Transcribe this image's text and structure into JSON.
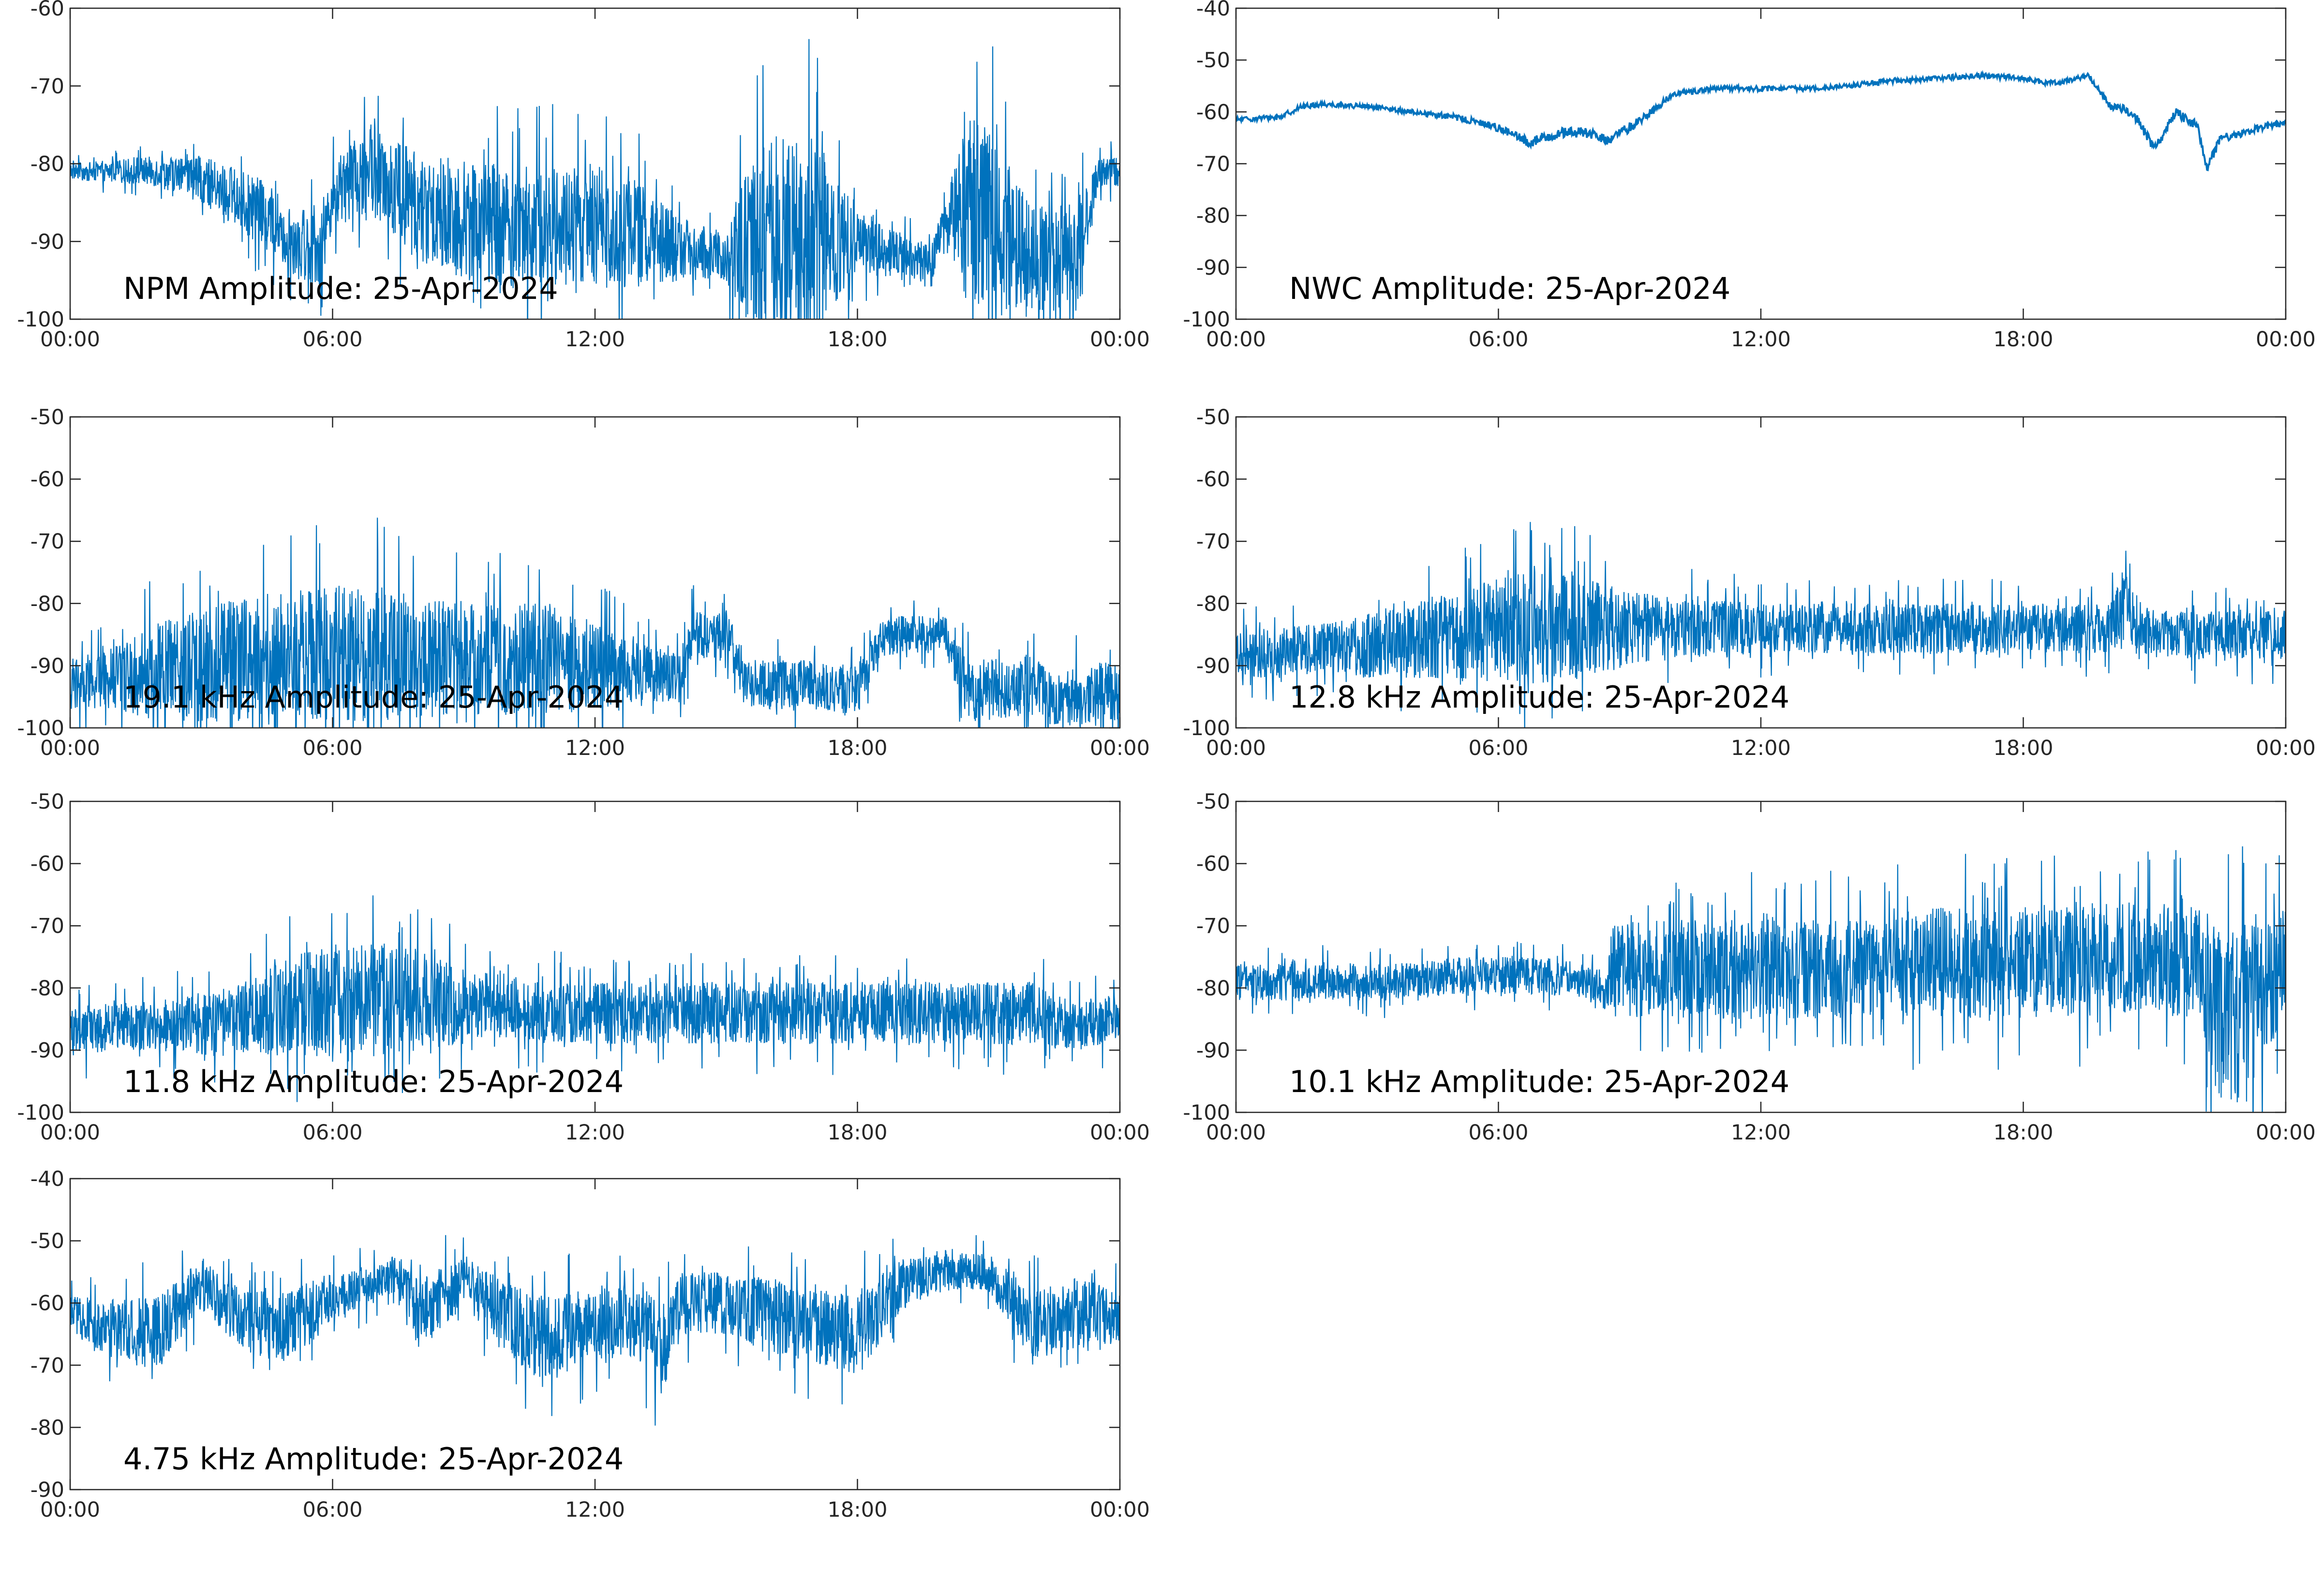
{
  "figure": {
    "series_color": "#0072BD"
  },
  "chart_data": [
    {
      "type": "line",
      "title": "NPM Amplitude: 25-Apr-2024",
      "xlabel": "",
      "ylabel": "",
      "xticks": [
        "00:00",
        "06:00",
        "12:00",
        "18:00",
        "00:00"
      ],
      "xlim_hours": [
        0,
        24
      ],
      "ylim": [
        -100,
        -60
      ],
      "yticks": [
        -60,
        -70,
        -80,
        -90,
        -100
      ],
      "grid": false,
      "signal": "noisy",
      "series": [
        {
          "x_hours": [
            0,
            1,
            2,
            3,
            4,
            5,
            5.7,
            6,
            6.5,
            7,
            7.5,
            8,
            9,
            10,
            11,
            12,
            13,
            14,
            15,
            15.5,
            16,
            17,
            18,
            19,
            19.7,
            20,
            20.5,
            21,
            22,
            23,
            23.5,
            24
          ],
          "center": [
            -81,
            -81,
            -81,
            -82,
            -85,
            -89,
            -91,
            -84,
            -82,
            -81,
            -83,
            -86,
            -87,
            -88,
            -88,
            -88,
            -89,
            -91,
            -92,
            -91,
            -90,
            -89,
            -90,
            -92,
            -93,
            -87,
            -86,
            -87,
            -92,
            -92,
            -81,
            -81
          ],
          "spread": [
            1,
            1.5,
            2,
            3,
            4,
            5,
            5,
            4,
            5,
            6,
            7,
            7,
            8,
            8,
            8,
            8,
            7,
            4,
            3,
            12,
            13,
            13,
            4,
            3,
            3,
            2,
            12,
            13,
            7,
            7,
            2,
            2
          ]
        }
      ]
    },
    {
      "type": "line",
      "title": "NWC Amplitude: 25-Apr-2024",
      "xlabel": "",
      "ylabel": "",
      "xticks": [
        "00:00",
        "06:00",
        "12:00",
        "18:00",
        "00:00"
      ],
      "xlim_hours": [
        0,
        24
      ],
      "ylim": [
        -100,
        -40
      ],
      "yticks": [
        -40,
        -50,
        -60,
        -70,
        -80,
        -90,
        -100
      ],
      "grid": false,
      "signal": "smooth",
      "series": [
        {
          "x_hours": [
            0,
            1,
            1.5,
            2,
            3,
            4,
            5,
            6,
            6.7,
            7,
            7.5,
            8,
            8.5,
            9,
            9.5,
            10,
            11,
            12,
            13,
            14,
            15,
            16,
            17,
            18,
            18.5,
            19,
            19.5,
            20,
            20.5,
            21,
            21.5,
            22,
            22.2,
            22.5,
            23,
            24
          ],
          "center": [
            -61.5,
            -61,
            -59,
            -58.5,
            -59,
            -60,
            -61,
            -63,
            -66,
            -65,
            -64,
            -64,
            -65.5,
            -63,
            -60,
            -56.5,
            -55.5,
            -55.5,
            -55.5,
            -55,
            -54,
            -53.5,
            -53,
            -53.5,
            -54.5,
            -54,
            -53,
            -59,
            -60,
            -67,
            -60,
            -63,
            -71,
            -65,
            -64,
            -62
          ],
          "spread": [
            0.5,
            0.5,
            0.5,
            0.5,
            0.5,
            0.5,
            0.6,
            0.8,
            1,
            1,
            1,
            1,
            1,
            1,
            0.8,
            0.5,
            0.5,
            0.5,
            0.5,
            0.5,
            0.5,
            0.5,
            0.5,
            0.5,
            0.5,
            0.5,
            0.5,
            0.8,
            1,
            1,
            1,
            1,
            1,
            1,
            0.8,
            0.5
          ]
        }
      ]
    },
    {
      "type": "line",
      "title": "19.1 kHz Amplitude: 25-Apr-2024",
      "xlabel": "",
      "ylabel": "",
      "xticks": [
        "00:00",
        "06:00",
        "12:00",
        "18:00",
        "00:00"
      ],
      "xlim_hours": [
        0,
        24
      ],
      "ylim": [
        -100,
        -50
      ],
      "yticks": [
        -50,
        -60,
        -70,
        -80,
        -90,
        -100
      ],
      "grid": false,
      "signal": "noisy",
      "series": [
        {
          "x_hours": [
            0,
            1,
            2,
            3,
            4,
            5,
            6,
            7,
            8,
            9,
            10,
            11,
            12,
            13,
            14,
            14.2,
            15,
            15.5,
            16,
            17,
            18,
            18.5,
            19,
            19.5,
            20,
            20.5,
            21,
            22,
            22.5,
            23,
            24
          ],
          "center": [
            -93,
            -92,
            -91,
            -90,
            -89,
            -88,
            -88,
            -88,
            -89,
            -89,
            -89,
            -89,
            -90,
            -91,
            -92,
            -85,
            -85,
            -93,
            -93,
            -93,
            -94,
            -86,
            -85,
            -85,
            -85,
            -94,
            -94,
            -93,
            -96,
            -95,
            -94
          ],
          "spread": [
            4,
            5,
            8,
            9,
            10,
            10,
            11,
            11,
            10,
            9,
            9,
            9,
            7,
            5,
            4,
            4,
            4,
            4,
            4,
            4,
            4,
            3,
            3,
            3,
            3,
            5,
            5,
            5,
            4,
            5,
            5
          ]
        }
      ]
    },
    {
      "type": "line",
      "title": "12.8 kHz Amplitude: 25-Apr-2024",
      "xlabel": "",
      "ylabel": "",
      "xticks": [
        "00:00",
        "06:00",
        "12:00",
        "18:00",
        "00:00"
      ],
      "xlim_hours": [
        0,
        24
      ],
      "ylim": [
        -100,
        -50
      ],
      "yticks": [
        -50,
        -60,
        -70,
        -80,
        -90,
        -100
      ],
      "grid": false,
      "signal": "noisy",
      "series": [
        {
          "x_hours": [
            0,
            1,
            2,
            3,
            4,
            5,
            6,
            7,
            8,
            9,
            10,
            11,
            12,
            13,
            14,
            15,
            16,
            17,
            18,
            19,
            20,
            20.3,
            20.6,
            21,
            22,
            23,
            24
          ],
          "center": [
            -88,
            -88,
            -87,
            -87,
            -86,
            -85,
            -84,
            -84,
            -84,
            -84,
            -84,
            -84,
            -84,
            -84,
            -84,
            -84,
            -84,
            -84,
            -84,
            -84,
            -84,
            -80,
            -84,
            -85,
            -85,
            -85,
            -85
          ],
          "spread": [
            4,
            4,
            4,
            5,
            6,
            7,
            9,
            9,
            8,
            6,
            5,
            5,
            4,
            4,
            4,
            4,
            4,
            4,
            4,
            4,
            4,
            6,
            4,
            4,
            4,
            4,
            4
          ]
        }
      ]
    },
    {
      "type": "line",
      "title": "11.8 kHz Amplitude: 25-Apr-2024",
      "xlabel": "",
      "ylabel": "",
      "xticks": [
        "00:00",
        "06:00",
        "12:00",
        "18:00",
        "00:00"
      ],
      "xlim_hours": [
        0,
        24
      ],
      "ylim": [
        -100,
        -50
      ],
      "yticks": [
        -50,
        -60,
        -70,
        -80,
        -90,
        -100
      ],
      "grid": false,
      "signal": "noisy",
      "series": [
        {
          "x_hours": [
            0,
            1,
            2,
            3,
            4,
            5,
            6,
            7,
            8,
            9,
            10,
            11,
            12,
            13,
            14,
            15,
            16,
            17,
            18,
            19,
            20,
            21,
            22,
            23,
            24
          ],
          "center": [
            -87,
            -86,
            -86,
            -86,
            -85,
            -83,
            -82,
            -82,
            -82,
            -83,
            -83,
            -84,
            -84,
            -84,
            -84,
            -84,
            -84,
            -84,
            -84,
            -84,
            -84,
            -84,
            -84,
            -86,
            -85
          ],
          "spread": [
            4,
            4,
            4,
            5,
            6,
            8,
            9,
            9,
            8,
            6,
            5,
            5,
            5,
            5,
            5,
            5,
            5,
            5,
            5,
            5,
            5,
            5,
            5,
            4,
            4
          ]
        }
      ]
    },
    {
      "type": "line",
      "title": "10.1 kHz Amplitude: 25-Apr-2024",
      "xlabel": "",
      "ylabel": "",
      "xticks": [
        "00:00",
        "06:00",
        "12:00",
        "18:00",
        "00:00"
      ],
      "xlim_hours": [
        0,
        24
      ],
      "ylim": [
        -100,
        -50
      ],
      "yticks": [
        -50,
        -60,
        -70,
        -80,
        -90,
        -100
      ],
      "grid": false,
      "signal": "noisy",
      "series": [
        {
          "x_hours": [
            0,
            1,
            2,
            3,
            4,
            5,
            6,
            7,
            8,
            8.5,
            8.6,
            10,
            12,
            14,
            16,
            18,
            20,
            21,
            22,
            22.5,
            23,
            24
          ],
          "center": [
            -79,
            -79,
            -79,
            -79,
            -79,
            -78,
            -78,
            -78,
            -79,
            -80,
            -77,
            -77,
            -77,
            -77,
            -76,
            -76,
            -75,
            -75,
            -76,
            -84,
            -84,
            -75
          ],
          "spread": [
            3,
            3,
            3,
            3,
            3,
            3,
            3,
            3,
            3,
            3,
            8,
            8,
            8,
            8,
            9,
            9,
            9,
            9,
            9,
            15,
            15,
            9
          ]
        }
      ]
    },
    {
      "type": "line",
      "title": "4.75 kHz Amplitude: 25-Apr-2024",
      "xlabel": "",
      "ylabel": "",
      "xticks": [
        "00:00",
        "06:00",
        "12:00",
        "18:00",
        "00:00"
      ],
      "xlim_hours": [
        0,
        24
      ],
      "ylim": [
        -90,
        -40
      ],
      "yticks": [
        -40,
        -50,
        -60,
        -70,
        -80,
        -90
      ],
      "grid": false,
      "signal": "noisy",
      "series": [
        {
          "x_hours": [
            0,
            1,
            2,
            3,
            4,
            5,
            6,
            7,
            7.5,
            8,
            9,
            10,
            11,
            12,
            13,
            13.5,
            14,
            15,
            16,
            17,
            18,
            19,
            20,
            21,
            22,
            23,
            24
          ],
          "center": [
            -62,
            -64,
            -65,
            -57,
            -63,
            -64,
            -59,
            -57,
            -55,
            -62,
            -56,
            -63,
            -66,
            -63,
            -63,
            -68,
            -60,
            -60,
            -62,
            -64,
            -65,
            -57,
            -55,
            -55,
            -64,
            -61,
            -62
          ],
          "spread": [
            3,
            5,
            6,
            4,
            5,
            6,
            4,
            3,
            3,
            6,
            4,
            6,
            7,
            6,
            6,
            8,
            5,
            5,
            6,
            6,
            7,
            4,
            3,
            3,
            6,
            5,
            5
          ]
        }
      ]
    }
  ]
}
